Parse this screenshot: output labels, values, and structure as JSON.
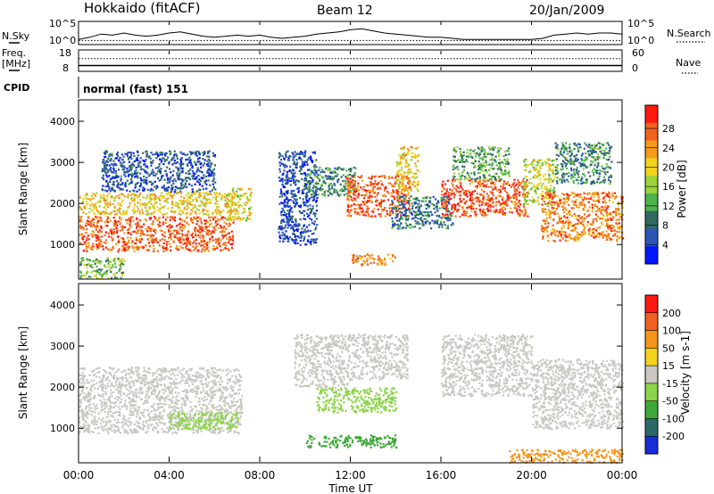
{
  "header": {
    "station": "Hokkaido (fitACF)",
    "beam": "Beam 12",
    "date": "20/Jan/2009"
  },
  "labels": {
    "nsky": "N.Sky",
    "freq": "Freq.",
    "freq_unit": "[MHz]",
    "cpid": "CPID",
    "nsearch": "N.Search",
    "nave": "Nave",
    "cpid_value": "normal (fast) 151",
    "time_axis": "Time UT"
  },
  "chart_data": [
    {
      "type": "line",
      "name": "noise-panel",
      "left_ticks": [
        "10^5",
        "10^0"
      ],
      "right_ticks": [
        "10^5",
        "10^0"
      ],
      "series": [
        {
          "name": "N.Sky",
          "x": [
            0,
            0.5,
            1,
            1.5,
            2,
            2.5,
            3,
            3.5,
            4,
            4.5,
            5,
            5.5,
            6,
            6.5,
            7,
            7.5,
            8,
            8.5,
            9,
            9.5,
            10,
            10.5,
            11,
            11.5,
            12,
            12.5,
            13,
            13.5,
            14,
            14.5,
            15,
            15.5,
            16,
            16.5,
            17,
            17.5,
            18,
            18.5,
            19,
            19.5,
            20,
            20.5,
            21,
            21.5,
            22,
            22.5,
            23,
            23.5,
            24
          ],
          "y": [
            0.2,
            0.3,
            0.45,
            0.4,
            0.5,
            0.4,
            0.35,
            0.4,
            0.5,
            0.55,
            0.45,
            0.35,
            0.3,
            0.35,
            0.4,
            0.35,
            0.4,
            0.3,
            0.25,
            0.3,
            0.35,
            0.45,
            0.5,
            0.55,
            0.65,
            0.7,
            0.6,
            0.5,
            0.45,
            0.4,
            0.35,
            0.3,
            0.3,
            0.25,
            0.2,
            0.2,
            0.2,
            0.2,
            0.2,
            0.2,
            0.2,
            0.25,
            0.4,
            0.45,
            0.5,
            0.45,
            0.5,
            0.5,
            0.45
          ]
        },
        {
          "name": "N.Search",
          "style": "dotted",
          "level": 0.15
        }
      ]
    },
    {
      "type": "line",
      "name": "freq-panel",
      "left_ticks": [
        "18",
        "8"
      ],
      "right_ticks": [
        "60",
        "0"
      ],
      "series": [
        {
          "name": "Freq.",
          "level_mhz": 10.5
        },
        {
          "name": "Nave",
          "style": "dotted",
          "level": 0.6
        }
      ]
    },
    {
      "type": "heatmap",
      "name": "power-panel",
      "ylabel": "Slant Range [km]",
      "xlabel": "Time UT",
      "x_ticks": [
        "00:00",
        "04:00",
        "08:00",
        "12:00",
        "16:00",
        "20:00",
        "00:00"
      ],
      "y_ticks": [
        "1000",
        "2000",
        "3000",
        "4000"
      ],
      "ylim": [
        180,
        4500
      ],
      "colorbar": {
        "label": "Power [dB]",
        "ticks": [
          "4",
          "8",
          "12",
          "16",
          "20",
          "24",
          "28"
        ],
        "colors": [
          "#0018ff",
          "#2d55b8",
          "#2f6a5e",
          "#4db34a",
          "#9dd33a",
          "#f2d21c",
          "#f59a1a",
          "#f0641e",
          "#ff1a10"
        ]
      },
      "regions": [
        {
          "t": [
            0.0,
            6.8
          ],
          "r": [
            850,
            1700
          ],
          "v": 27
        },
        {
          "t": [
            0.0,
            7.0
          ],
          "r": [
            1750,
            2300
          ],
          "v": 20
        },
        {
          "t": [
            1.0,
            6.0
          ],
          "r": [
            2300,
            3300
          ],
          "v": 6
        },
        {
          "t": [
            6.5,
            7.6
          ],
          "r": [
            1600,
            2400
          ],
          "v": 18
        },
        {
          "t": [
            8.8,
            10.5
          ],
          "r": [
            1000,
            3300
          ],
          "v": 5
        },
        {
          "t": [
            10.0,
            12.2
          ],
          "r": [
            2200,
            2900
          ],
          "v": 10
        },
        {
          "t": [
            11.8,
            14.6
          ],
          "r": [
            1700,
            2700
          ],
          "v": 27
        },
        {
          "t": [
            13.8,
            16.5
          ],
          "r": [
            1400,
            2200
          ],
          "v": 8
        },
        {
          "t": [
            12.0,
            14.0
          ],
          "r": [
            520,
            780
          ],
          "v": 24
        },
        {
          "t": [
            14.0,
            15.0
          ],
          "r": [
            2300,
            3400
          ],
          "v": 20
        },
        {
          "t": [
            16.0,
            19.8
          ],
          "r": [
            1700,
            2600
          ],
          "v": 28
        },
        {
          "t": [
            16.5,
            19.0
          ],
          "r": [
            2600,
            3400
          ],
          "v": 12
        },
        {
          "t": [
            19.6,
            21.0
          ],
          "r": [
            2000,
            3100
          ],
          "v": 17
        },
        {
          "t": [
            20.4,
            24.0
          ],
          "r": [
            1100,
            2300
          ],
          "v": 25
        },
        {
          "t": [
            21.0,
            23.5
          ],
          "r": [
            2500,
            3500
          ],
          "v": 10
        },
        {
          "t": [
            0.0,
            2.0
          ],
          "r": [
            180,
            700
          ],
          "v": 14
        }
      ]
    },
    {
      "type": "heatmap",
      "name": "velocity-panel",
      "ylabel": "Slant Range [km]",
      "xlabel": "Time UT",
      "x_ticks": [
        "00:00",
        "04:00",
        "08:00",
        "12:00",
        "16:00",
        "20:00",
        "00:00"
      ],
      "y_ticks": [
        "1000",
        "2000",
        "3000",
        "4000"
      ],
      "ylim": [
        180,
        4500
      ],
      "colorbar": {
        "label": "Velocity [m s-1]",
        "ticks": [
          "200",
          "100",
          "50",
          "15",
          "-15",
          "-50",
          "-100",
          "-200"
        ],
        "colors": [
          "#1a2cd8",
          "#2a6a66",
          "#3ea83a",
          "#8cd44a",
          "#c8c8c0",
          "#f2d21c",
          "#f5951a",
          "#f06020",
          "#ff1a10"
        ]
      },
      "regions": [
        {
          "t": [
            0.0,
            7.2
          ],
          "r": [
            900,
            2500
          ],
          "v": 0
        },
        {
          "t": [
            9.5,
            12.0
          ],
          "r": [
            2000,
            3300
          ],
          "v": 0
        },
        {
          "t": [
            12.0,
            14.5
          ],
          "r": [
            2200,
            3300
          ],
          "v": 0
        },
        {
          "t": [
            16.0,
            20.0
          ],
          "r": [
            1800,
            3300
          ],
          "v": 0
        },
        {
          "t": [
            20.0,
            24.0
          ],
          "r": [
            1000,
            2700
          ],
          "v": 0
        },
        {
          "t": [
            10.0,
            14.0
          ],
          "r": [
            550,
            850
          ],
          "v": 60
        },
        {
          "t": [
            4.0,
            7.0
          ],
          "r": [
            1000,
            1400
          ],
          "v": 30
        },
        {
          "t": [
            19.0,
            24.0
          ],
          "r": [
            180,
            500
          ],
          "v": -80
        },
        {
          "t": [
            10.5,
            14.0
          ],
          "r": [
            1400,
            2000
          ],
          "v": 40
        }
      ]
    }
  ]
}
